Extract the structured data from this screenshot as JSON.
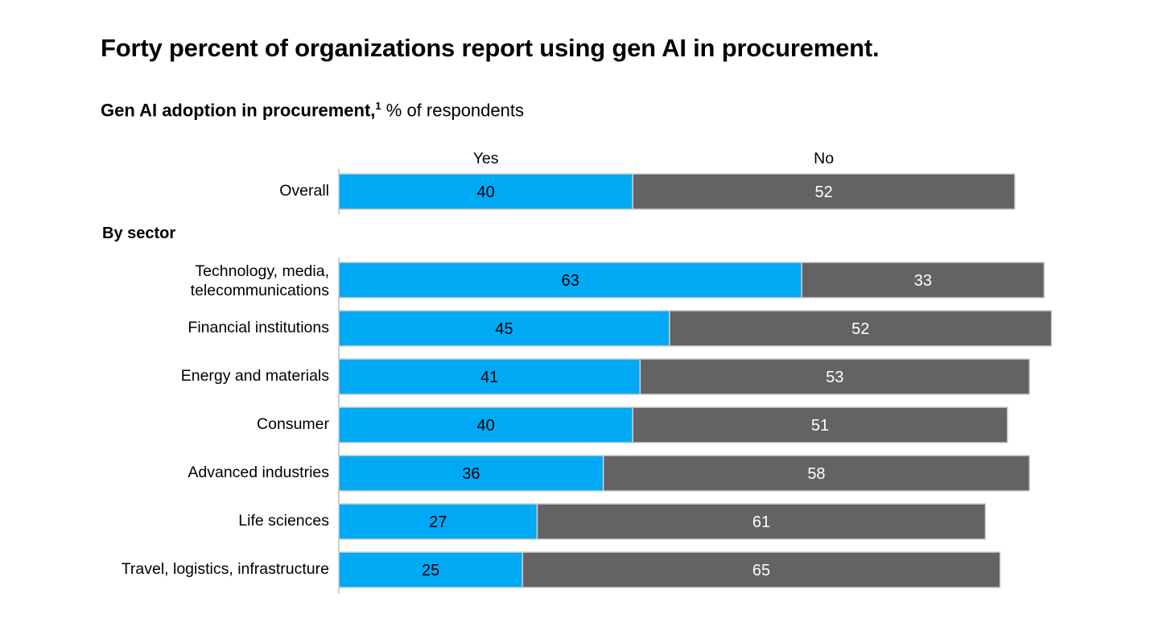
{
  "title": "Forty percent of organizations report using gen AI in procurement.",
  "subtitle": {
    "bold": "Gen AI adoption in procurement,",
    "footnote_mark": "1",
    "rest": " % of respondents"
  },
  "colors": {
    "yes": "#00A9F4",
    "no": "#636363"
  },
  "chart_data": {
    "type": "bar",
    "orientation": "horizontal",
    "stacked": true,
    "title": "Gen AI adoption in procurement, % of respondents",
    "series_labels": [
      "Yes",
      "No"
    ],
    "overall": {
      "label": "Overall",
      "yes": 40,
      "no": 52
    },
    "group_label": "By sector",
    "categories": [
      "Technology, media, telecommunications",
      "Financial institutions",
      "Energy and materials",
      "Consumer",
      "Advanced industries",
      "Life sciences",
      "Travel, logistics, infrastructure"
    ],
    "category_lines": [
      [
        "Technology, media,",
        "telecommunications"
      ],
      [
        "Financial institutions"
      ],
      [
        "Energy and materials"
      ],
      [
        "Consumer"
      ],
      [
        "Advanced industries"
      ],
      [
        "Life sciences"
      ],
      [
        "Travel, logistics, infrastructure"
      ]
    ],
    "series": [
      {
        "name": "Yes",
        "values": [
          63,
          45,
          41,
          40,
          36,
          27,
          25
        ]
      },
      {
        "name": "No",
        "values": [
          33,
          52,
          53,
          51,
          58,
          61,
          65
        ]
      }
    ],
    "grid": false
  }
}
